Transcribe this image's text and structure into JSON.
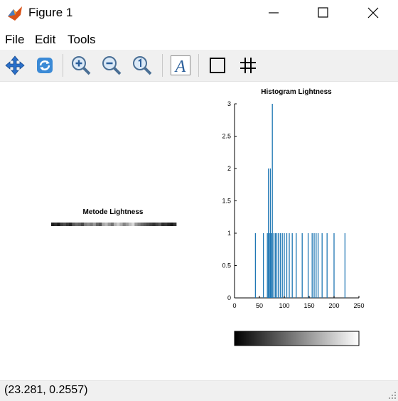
{
  "window": {
    "title": "Figure 1",
    "controls": [
      "minimize",
      "maximize",
      "close"
    ]
  },
  "menu": {
    "items": [
      "File",
      "Edit",
      "Tools"
    ]
  },
  "toolbar": {
    "buttons": [
      {
        "icon": "pan-icon"
      },
      {
        "icon": "rotate-icon"
      },
      {
        "icon": "zoom-in-icon"
      },
      {
        "icon": "zoom-out-icon"
      },
      {
        "icon": "zoom-reset-icon"
      },
      {
        "icon": "insert-text-icon",
        "glyph": "A"
      },
      {
        "icon": "box-icon"
      },
      {
        "icon": "grid-icon"
      }
    ]
  },
  "status": {
    "coords": "(23.281, 0.2557)"
  },
  "image_panel": {
    "title": "Metode Lightness",
    "pixels": [
      0.12,
      0.18,
      0.1,
      0.25,
      0.3,
      0.22,
      0.15,
      0.35,
      0.42,
      0.38,
      0.28,
      0.5,
      0.55,
      0.48,
      0.6,
      0.4,
      0.33,
      0.65,
      0.72,
      0.58,
      0.45,
      0.7,
      0.8,
      0.68,
      0.52,
      0.62,
      0.75,
      0.85,
      0.6,
      0.5,
      0.42,
      0.36,
      0.3,
      0.25,
      0.2,
      0.28,
      0.35,
      0.18,
      0.22,
      0.15,
      0.1,
      0.2
    ]
  },
  "chart_data": {
    "type": "bar",
    "title": "Histogram Lightness",
    "xlabel": "",
    "ylabel": "",
    "xlim": [
      0,
      250
    ],
    "ylim": [
      0,
      3
    ],
    "xticks": [
      "0",
      "50",
      "100",
      "150",
      "200",
      "250"
    ],
    "yticks": [
      "0",
      "0.5",
      "1",
      "1.5",
      "2",
      "2.5",
      "3"
    ],
    "x": [
      42,
      58,
      66,
      68,
      70,
      72,
      74,
      76,
      79,
      82,
      85,
      88,
      92,
      96,
      100,
      105,
      110,
      116,
      124,
      136,
      148,
      156,
      160,
      164,
      168,
      176,
      186,
      200,
      222
    ],
    "values": [
      1,
      1,
      1,
      2,
      1,
      2,
      1,
      3,
      1,
      1,
      1,
      1,
      1,
      1,
      1,
      1,
      1,
      1,
      1,
      1,
      1,
      1,
      1,
      1,
      1,
      1,
      1,
      1,
      1
    ],
    "color": "#1f77b4",
    "colorbar": {
      "from": "#000000",
      "to": "#ffffff"
    },
    "grid": false
  }
}
